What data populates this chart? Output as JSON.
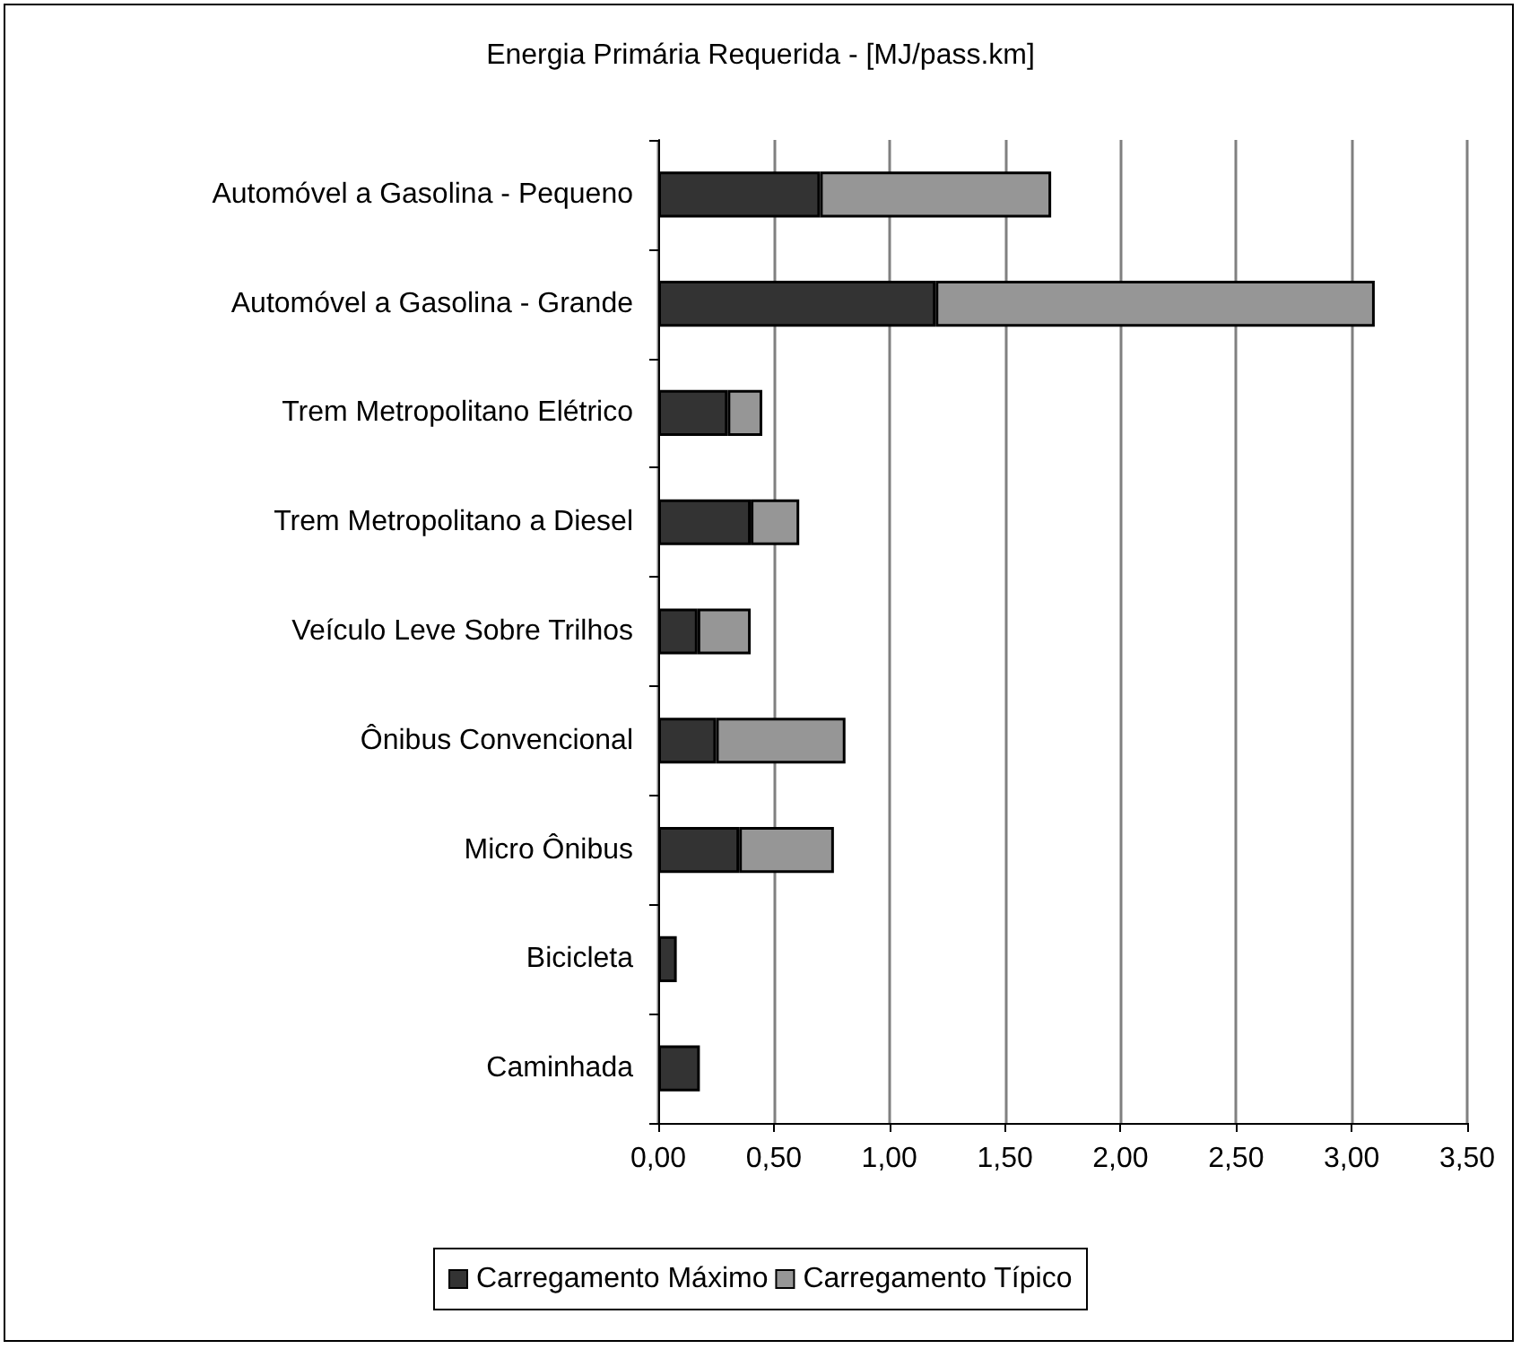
{
  "chart_data": {
    "type": "bar",
    "orientation": "horizontal",
    "stacked": true,
    "title": "Energia Primária Requerida - [MJ/pass.km]",
    "categories": [
      "Automóvel a Gasolina - Pequeno",
      "Automóvel a Gasolina - Grande",
      "Trem Metropolitano Elétrico",
      "Trem Metropolitano a Diesel",
      "Veículo Leve Sobre Trilhos",
      "Ônibus Convencional",
      "Micro Ônibus",
      "Bicicleta",
      "Caminhada"
    ],
    "series": [
      {
        "name": "Carregamento Máximo",
        "color": "#333333",
        "values": [
          0.7,
          1.2,
          0.3,
          0.4,
          0.17,
          0.25,
          0.35,
          0.08,
          0.18
        ]
      },
      {
        "name": "Carregamento Típico",
        "color": "#969696",
        "values": [
          1.0,
          1.9,
          0.15,
          0.21,
          0.23,
          0.56,
          0.41,
          null,
          null
        ]
      }
    ],
    "xlim": [
      0,
      3.5
    ],
    "xticks": [
      {
        "value": 0,
        "label": "0,00"
      },
      {
        "value": 0.5,
        "label": "0,50"
      },
      {
        "value": 1,
        "label": "1,00"
      },
      {
        "value": 1.5,
        "label": "1,50"
      },
      {
        "value": 2,
        "label": "2,00"
      },
      {
        "value": 2.5,
        "label": "2,50"
      },
      {
        "value": 3,
        "label": "3,00"
      },
      {
        "value": 3.5,
        "label": "3,50"
      }
    ],
    "grid": "x",
    "legend": "bottom"
  }
}
